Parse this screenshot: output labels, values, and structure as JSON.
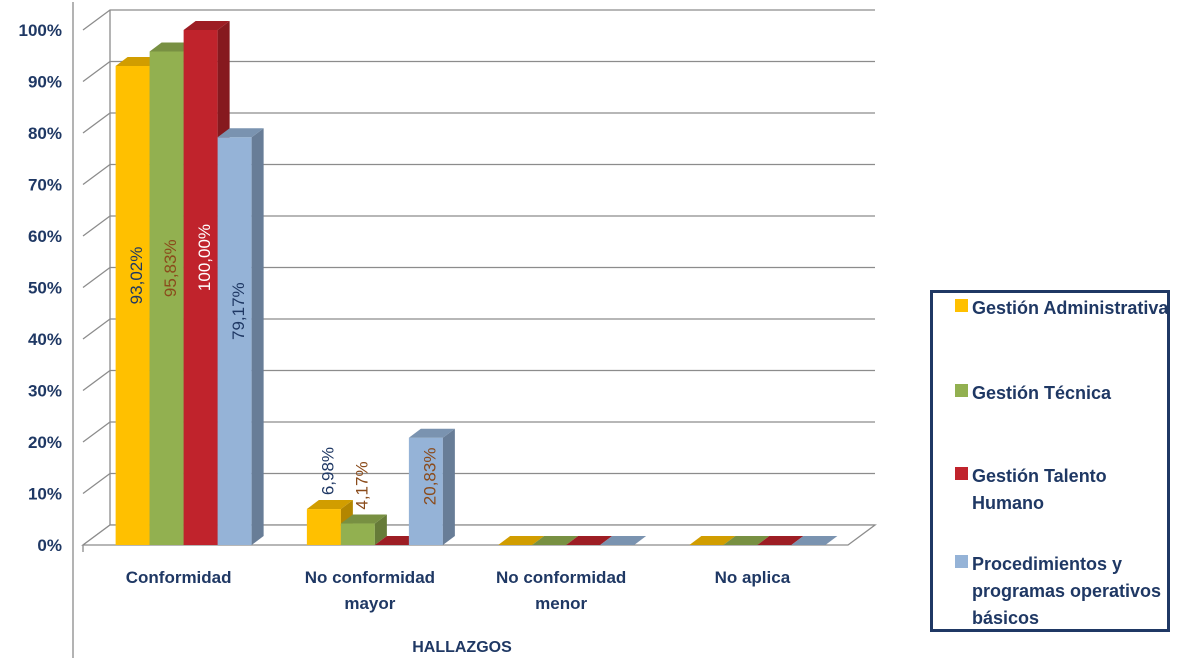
{
  "chart_data": {
    "type": "bar",
    "categories": [
      "Conformidad",
      "No conformidad mayor",
      "No conformidad menor",
      "No aplica"
    ],
    "xlabel": "HALLAZGOS",
    "ylabel": "",
    "ylim": [
      0,
      100
    ],
    "y_ticks": [
      "0%",
      "10%",
      "20%",
      "30%",
      "40%",
      "50%",
      "60%",
      "70%",
      "80%",
      "90%",
      "100%"
    ],
    "grid": true,
    "legend_position": "right",
    "series": [
      {
        "name": "Gestión Administrativa",
        "color": "#ffc000",
        "values": [
          93.02,
          6.98,
          0,
          0
        ],
        "labels": [
          "93,02%",
          "6,98%",
          "",
          ""
        ]
      },
      {
        "name": "Gestión Técnica",
        "color": "#92b050",
        "values": [
          95.83,
          4.17,
          0,
          0
        ],
        "labels": [
          "95,83%",
          "4,17%",
          "",
          ""
        ]
      },
      {
        "name": "Gestión Talento Humano",
        "color": "#c0232c",
        "values": [
          100.0,
          0,
          0,
          0
        ],
        "labels": [
          "100,00%",
          "",
          "",
          ""
        ]
      },
      {
        "name": "Procedimientos y programas operativos básicos",
        "color": "#95b3d7",
        "values": [
          79.17,
          20.83,
          0,
          0
        ],
        "labels": [
          "79,17%",
          "20,83%",
          "",
          ""
        ]
      }
    ]
  },
  "legend": {
    "items": [
      "Gestión Administrativa",
      "Gestión Técnica",
      "Gestión Talento Humano",
      "Procedimientos y programas operativos básicos"
    ]
  }
}
